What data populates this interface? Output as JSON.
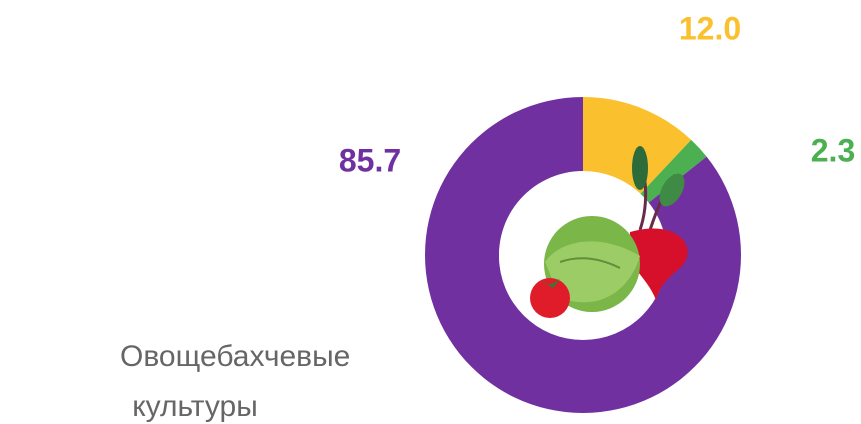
{
  "chart_data": {
    "type": "pie",
    "title": "Овощебахчевые культуры",
    "values": [
      12.0,
      2.3,
      85.7
    ],
    "value_labels": [
      "12.0",
      "2.3",
      "85.7"
    ],
    "colors": [
      "#fbc02d",
      "#4caf50",
      "#7030a0"
    ],
    "donut": true
  }
}
